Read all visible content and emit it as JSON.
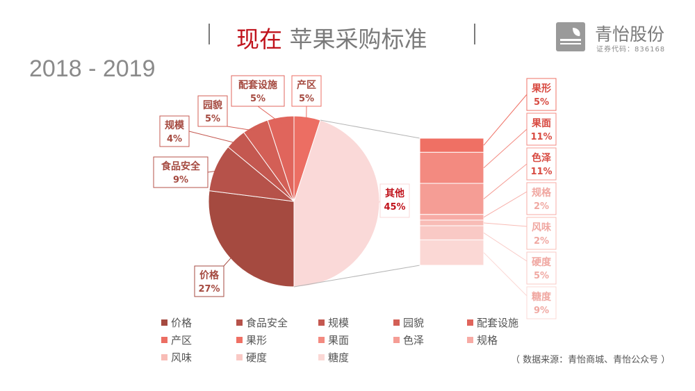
{
  "header": {
    "title_highlight": "现在",
    "title_rest": "苹果采购标准",
    "year_range": "2018 - 2019"
  },
  "logo": {
    "name": "青怡股份",
    "code": "证券代码：836168",
    "icon": "leaf-logo-icon"
  },
  "source_note": "（ 数据来源：青怡商城、青怡公众号 ）",
  "chart_data": {
    "type": "pie",
    "subtype": "pie-of-pie",
    "main_slices": [
      {
        "name": "价格",
        "value": 27,
        "label": "27%",
        "color": "#a54a40"
      },
      {
        "name": "食品安全",
        "value": 9,
        "label": "9%",
        "color": "#b6524a"
      },
      {
        "name": "规模",
        "value": 4,
        "label": "4%",
        "color": "#c45850"
      },
      {
        "name": "园貌",
        "value": 5,
        "label": "5%",
        "color": "#d35f56"
      },
      {
        "name": "配套设施",
        "value": 5,
        "label": "5%",
        "color": "#e0655c"
      },
      {
        "name": "产区",
        "value": 5,
        "label": "5%",
        "color": "#ec6e63"
      },
      {
        "name": "其他",
        "value": 45,
        "label": "45%",
        "color": "#fad9d8"
      }
    ],
    "secondary_bar": [
      {
        "name": "果形",
        "value": 5,
        "label": "5%",
        "color": "#ef7064"
      },
      {
        "name": "果面",
        "value": 11,
        "label": "11%",
        "color": "#f38a80"
      },
      {
        "name": "色泽",
        "value": 11,
        "label": "11%",
        "color": "#f59d95"
      },
      {
        "name": "规格",
        "value": 2,
        "label": "2%",
        "color": "#f7aba5"
      },
      {
        "name": "风味",
        "value": 2,
        "label": "2%",
        "color": "#f8bcb6"
      },
      {
        "name": "硬度",
        "value": 5,
        "label": "5%",
        "color": "#f9c9c5"
      },
      {
        "name": "糖度",
        "value": 9,
        "label": "9%",
        "color": "#fbd8d5"
      }
    ],
    "legend": [
      "价格",
      "食品安全",
      "规模",
      "园貌",
      "配套设施",
      "产区",
      "果形",
      "果面",
      "色泽",
      "规格",
      "风味",
      "硬度",
      "糖度"
    ],
    "legend_colors": [
      "#a54a40",
      "#b6524a",
      "#c45850",
      "#d35f56",
      "#e0655c",
      "#ec6e63",
      "#ef7064",
      "#f38a80",
      "#f59d95",
      "#f7aba5",
      "#f8bcb6",
      "#f9c9c5",
      "#fbd8d5"
    ],
    "legend_position": "bottom"
  }
}
